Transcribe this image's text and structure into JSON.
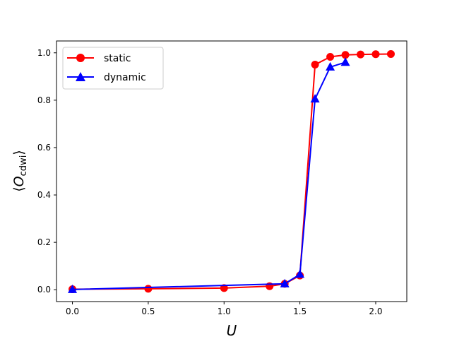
{
  "chart_data": {
    "type": "line",
    "xlabel": "U",
    "ylabel": {
      "prefix": "⟨",
      "symbol": "O",
      "subscript": "cdwi",
      "suffix": "⟩"
    },
    "xlim": [
      -0.105,
      2.205
    ],
    "ylim": [
      -0.05,
      1.05
    ],
    "xticks": [
      0.0,
      0.5,
      1.0,
      1.5,
      2.0
    ],
    "xtick_labels": [
      "0.0",
      "0.5",
      "1.0",
      "1.5",
      "2.0"
    ],
    "yticks": [
      0.0,
      0.2,
      0.4,
      0.6,
      0.8,
      1.0
    ],
    "ytick_labels": [
      "0.0",
      "0.2",
      "0.4",
      "0.6",
      "0.8",
      "1.0"
    ],
    "grid": false,
    "legend_position": "upper-left",
    "series": [
      {
        "name": "static",
        "color": "#ff0000",
        "marker": "circle",
        "x": [
          0.0,
          0.5,
          1.0,
          1.3,
          1.4,
          1.5,
          1.6,
          1.7,
          1.8,
          1.9,
          2.0,
          2.1
        ],
        "y": [
          0.002,
          0.004,
          0.007,
          0.015,
          0.025,
          0.06,
          0.95,
          0.983,
          0.991,
          0.993,
          0.994,
          0.995
        ]
      },
      {
        "name": "dynamic",
        "color": "#0000ff",
        "marker": "triangle",
        "x": [
          0.0,
          1.4,
          1.5,
          1.6,
          1.7,
          1.8
        ],
        "y": [
          0.001,
          0.025,
          0.065,
          0.805,
          0.94,
          0.96
        ]
      }
    ]
  }
}
